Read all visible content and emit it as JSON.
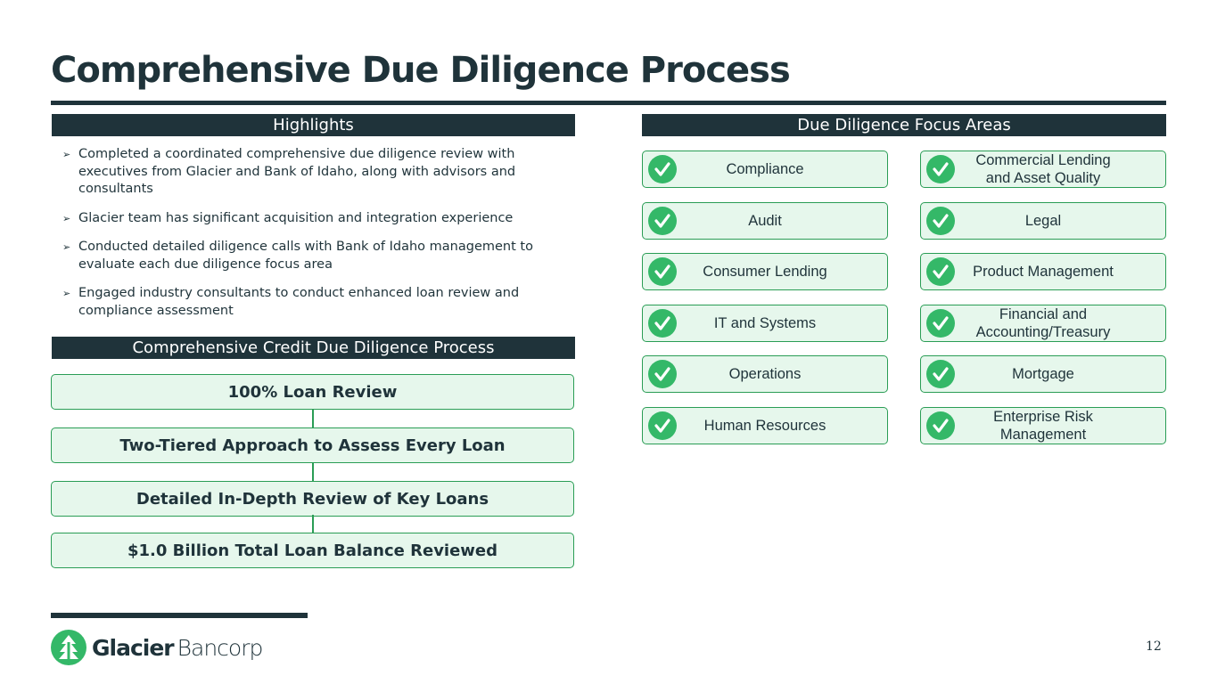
{
  "header": {
    "title": "Comprehensive Due Diligence Process"
  },
  "highlights": {
    "title": "Highlights",
    "bullets": [
      "Completed a coordinated comprehensive due diligence review with executives from Glacier and Bank of Idaho, along with advisors and consultants",
      "Glacier team has significant acquisition and integration experience",
      "Conducted detailed diligence calls with Bank of Idaho management to evaluate each due diligence focus area",
      "Engaged industry consultants to conduct enhanced loan review and compliance assessment"
    ]
  },
  "credit_process": {
    "title": "Comprehensive Credit Due Diligence Process",
    "steps": [
      "100% Loan Review",
      "Two-Tiered Approach to Assess Every Loan",
      "Detailed In-Depth Review of Key Loans",
      "$1.0 Billion Total Loan Balance Reviewed"
    ]
  },
  "focus_areas": {
    "title": "Due Diligence Focus Areas",
    "items": [
      "Compliance",
      "Commercial Lending and Asset Quality",
      "Audit",
      "Legal",
      "Consumer Lending",
      "Product Management",
      "IT and Systems",
      "Financial and Accounting/Treasury",
      "Operations",
      "Mortgage",
      "Human Resources",
      "Enterprise Risk Management"
    ]
  },
  "footer": {
    "logo_bold": "Glacier",
    "logo_light": "Bancorp",
    "page_number": "12"
  }
}
